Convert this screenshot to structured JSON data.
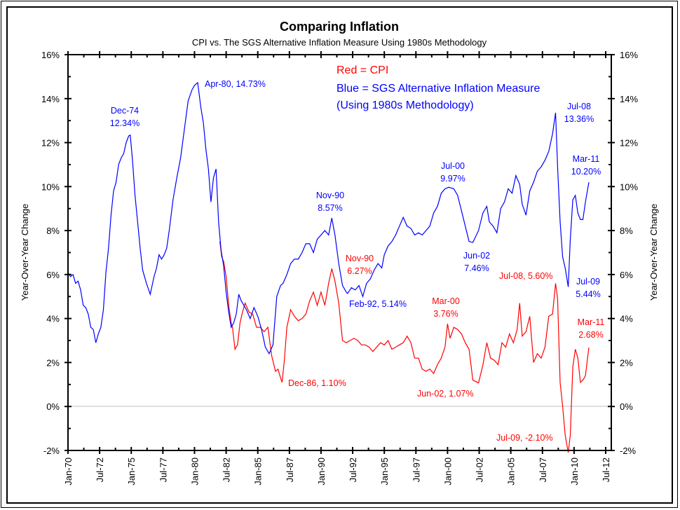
{
  "chart_data": {
    "type": "line",
    "title": "Comparing Inflation",
    "subtitle": "CPI vs. The SGS Alternative Inflation Measure Using 1980s Methodology",
    "ylabel_left": "Year-Over-Year Change",
    "ylabel_right": "Year-Over-Year Change",
    "xlabel": "",
    "ylim": [
      -2,
      16
    ],
    "xlim": [
      1970.0,
      2012.92
    ],
    "yticks": [
      -2,
      0,
      2,
      4,
      6,
      8,
      10,
      12,
      14,
      16
    ],
    "ytick_labels": [
      "-2%",
      "0%",
      "2%",
      "4%",
      "6%",
      "8%",
      "10%",
      "12%",
      "14%",
      "16%"
    ],
    "xticks": [
      1970.0,
      1972.5,
      1975.0,
      1977.5,
      1980.0,
      1982.5,
      1985.0,
      1987.5,
      1990.0,
      1992.5,
      1995.0,
      1997.5,
      2000.0,
      2002.5,
      2005.0,
      2007.5,
      2010.0,
      2012.5
    ],
    "xtick_labels": [
      "Jan-70",
      "Jul-72",
      "Jan-75",
      "Jul-77",
      "Jan-80",
      "Jul-82",
      "Jan-85",
      "Jul-87",
      "Jan-90",
      "Jul-92",
      "Jan-95",
      "Jul-97",
      "Jan-00",
      "Jul-02",
      "Jan-05",
      "Jul-07",
      "Jan-10",
      "Jul-12"
    ],
    "zero_line": true,
    "grid": false,
    "legend": {
      "placement": "top-center",
      "entries": [
        {
          "text": "Red = CPI",
          "color": "#ff0000"
        },
        {
          "text": "Blue = SGS Alternative Inflation Measure",
          "color": "#0000ff"
        },
        {
          "text": "(Using 1980s Methodology)",
          "color": "#0000ff"
        }
      ]
    },
    "series": [
      {
        "name": "SGS Alternative Inflation Measure (1980s Methodology)",
        "color": "#0000ff",
        "x": [
          1970.0,
          1970.2,
          1970.4,
          1970.6,
          1970.8,
          1971.0,
          1971.2,
          1971.4,
          1971.6,
          1971.8,
          1972.0,
          1972.2,
          1972.4,
          1972.6,
          1972.8,
          1973.0,
          1973.2,
          1973.4,
          1973.6,
          1973.8,
          1974.0,
          1974.2,
          1974.4,
          1974.6,
          1974.8,
          1974.92,
          1975.1,
          1975.3,
          1975.5,
          1975.7,
          1975.9,
          1976.2,
          1976.5,
          1976.8,
          1977.0,
          1977.2,
          1977.4,
          1977.6,
          1977.8,
          1978.0,
          1978.3,
          1978.6,
          1978.9,
          1979.2,
          1979.5,
          1979.8,
          1980.0,
          1980.25,
          1980.5,
          1980.7,
          1980.9,
          1981.1,
          1981.3,
          1981.5,
          1981.7,
          1981.9,
          1982.1,
          1982.3,
          1982.5,
          1982.7,
          1982.9,
          1983.1,
          1983.3,
          1983.5,
          1983.7,
          1983.9,
          1984.1,
          1984.4,
          1984.7,
          1985.0,
          1985.3,
          1985.6,
          1985.9,
          1986.2,
          1986.5,
          1986.8,
          1987.0,
          1987.3,
          1987.6,
          1987.9,
          1988.2,
          1988.5,
          1988.8,
          1989.1,
          1989.4,
          1989.7,
          1990.0,
          1990.3,
          1990.6,
          1990.85,
          1991.1,
          1991.4,
          1991.7,
          1992.0,
          1992.1,
          1992.4,
          1992.7,
          1993.0,
          1993.3,
          1993.6,
          1993.9,
          1994.2,
          1994.5,
          1994.8,
          1995.0,
          1995.3,
          1995.6,
          1995.9,
          1996.2,
          1996.5,
          1996.8,
          1997.1,
          1997.4,
          1997.7,
          1998.0,
          1998.3,
          1998.6,
          1998.9,
          1999.2,
          1999.5,
          1999.8,
          2000.1,
          2000.5,
          2000.8,
          2001.1,
          2001.4,
          2001.7,
          2002.0,
          2002.45,
          2002.8,
          2003.1,
          2003.3,
          2003.6,
          2003.9,
          2004.2,
          2004.5,
          2004.8,
          2005.1,
          2005.4,
          2005.7,
          2005.9,
          2006.2,
          2006.5,
          2006.8,
          2007.1,
          2007.4,
          2007.7,
          2008.0,
          2008.3,
          2008.54,
          2008.7,
          2008.9,
          2009.1,
          2009.3,
          2009.54,
          2009.7,
          2009.9,
          2010.1,
          2010.3,
          2010.5,
          2010.7,
          2010.9,
          2011.17
        ],
        "values": [
          6.1,
          5.9,
          6.0,
          5.6,
          5.7,
          5.3,
          4.6,
          4.5,
          4.2,
          3.6,
          3.5,
          2.9,
          3.3,
          3.6,
          4.4,
          6.1,
          7.2,
          8.7,
          9.8,
          10.2,
          11.0,
          11.3,
          11.5,
          12.0,
          12.3,
          12.34,
          11.2,
          9.6,
          8.4,
          7.2,
          6.2,
          5.6,
          5.1,
          5.9,
          6.3,
          6.9,
          6.7,
          6.9,
          7.2,
          8.0,
          9.4,
          10.4,
          11.3,
          12.6,
          13.9,
          14.4,
          14.6,
          14.73,
          13.6,
          12.9,
          11.7,
          10.8,
          9.3,
          10.4,
          10.8,
          8.4,
          7.1,
          6.4,
          5.2,
          4.3,
          3.6,
          3.8,
          4.2,
          5.1,
          4.8,
          4.6,
          4.4,
          4.0,
          4.5,
          4.1,
          3.5,
          2.7,
          2.4,
          2.8,
          5.0,
          5.5,
          5.6,
          6.0,
          6.5,
          6.7,
          6.7,
          7.0,
          7.4,
          7.4,
          7.0,
          7.6,
          7.8,
          8.0,
          7.8,
          8.57,
          7.8,
          6.5,
          5.5,
          5.2,
          5.14,
          5.4,
          5.3,
          5.5,
          5.0,
          5.6,
          5.8,
          6.2,
          6.5,
          6.3,
          6.9,
          7.3,
          7.5,
          7.8,
          8.2,
          8.6,
          8.2,
          8.1,
          7.8,
          7.9,
          7.8,
          8.0,
          8.2,
          8.8,
          9.1,
          9.7,
          9.9,
          9.97,
          9.9,
          9.6,
          8.9,
          8.2,
          7.5,
          7.46,
          8.0,
          8.8,
          9.1,
          8.4,
          8.2,
          7.9,
          9.0,
          9.3,
          9.9,
          9.7,
          10.5,
          10.1,
          9.2,
          8.7,
          9.8,
          10.2,
          10.7,
          10.9,
          11.2,
          11.6,
          12.4,
          13.36,
          10.9,
          8.4,
          6.8,
          6.3,
          5.44,
          7.6,
          9.4,
          9.6,
          8.8,
          8.5,
          8.5,
          9.3,
          10.2
        ]
      },
      {
        "name": "CPI",
        "color": "#ff0000",
        "x": [
          1982.0,
          1982.15,
          1982.3,
          1982.5,
          1982.7,
          1982.9,
          1983.0,
          1983.2,
          1983.4,
          1983.6,
          1983.8,
          1984.0,
          1984.3,
          1984.6,
          1984.9,
          1985.2,
          1985.5,
          1985.8,
          1986.1,
          1986.4,
          1986.6,
          1986.8,
          1986.92,
          1987.1,
          1987.3,
          1987.6,
          1987.9,
          1988.2,
          1988.5,
          1988.8,
          1989.1,
          1989.4,
          1989.7,
          1990.0,
          1990.3,
          1990.6,
          1990.85,
          1991.1,
          1991.4,
          1991.7,
          1992.0,
          1992.3,
          1992.6,
          1992.9,
          1993.2,
          1993.5,
          1993.8,
          1994.1,
          1994.4,
          1994.7,
          1995.0,
          1995.3,
          1995.6,
          1995.9,
          1996.2,
          1996.5,
          1996.8,
          1997.1,
          1997.4,
          1997.7,
          1998.0,
          1998.3,
          1998.6,
          1998.9,
          1999.2,
          1999.5,
          1999.8,
          2000.0,
          2000.2,
          2000.5,
          2000.8,
          2001.1,
          2001.4,
          2001.7,
          2002.0,
          2002.45,
          2002.8,
          2003.1,
          2003.4,
          2003.7,
          2004.0,
          2004.3,
          2004.6,
          2004.9,
          2005.2,
          2005.5,
          2005.7,
          2005.9,
          2006.2,
          2006.5,
          2006.8,
          2007.1,
          2007.4,
          2007.7,
          2008.0,
          2008.3,
          2008.54,
          2008.7,
          2008.9,
          2009.1,
          2009.3,
          2009.54,
          2009.7,
          2009.9,
          2010.1,
          2010.3,
          2010.5,
          2010.7,
          2010.9,
          2011.17
        ],
        "values": [
          7.5,
          6.8,
          6.6,
          5.9,
          4.6,
          3.8,
          3.6,
          2.6,
          2.8,
          3.8,
          4.3,
          4.7,
          4.3,
          4.2,
          3.6,
          3.6,
          3.4,
          3.6,
          2.3,
          1.6,
          1.7,
          1.3,
          1.1,
          2.1,
          3.6,
          4.4,
          4.1,
          3.9,
          4.0,
          4.2,
          4.8,
          5.2,
          4.6,
          5.2,
          4.6,
          5.6,
          6.27,
          5.7,
          4.7,
          3.0,
          2.9,
          3.0,
          3.1,
          3.0,
          2.8,
          2.8,
          2.7,
          2.5,
          2.7,
          2.9,
          2.8,
          3.0,
          2.6,
          2.7,
          2.8,
          2.9,
          3.2,
          2.9,
          2.2,
          2.2,
          1.7,
          1.6,
          1.7,
          1.5,
          1.9,
          2.2,
          2.7,
          3.76,
          3.1,
          3.6,
          3.5,
          3.3,
          2.9,
          2.6,
          1.2,
          1.07,
          1.9,
          2.9,
          2.2,
          2.1,
          1.9,
          2.9,
          2.7,
          3.3,
          2.9,
          3.5,
          4.7,
          3.2,
          3.4,
          4.1,
          2.0,
          2.4,
          2.2,
          2.7,
          4.1,
          4.2,
          5.6,
          4.9,
          1.1,
          0.0,
          -1.3,
          -2.1,
          -1.3,
          1.8,
          2.6,
          2.2,
          1.1,
          1.2,
          1.4,
          2.68
        ]
      }
    ],
    "annotations": [
      {
        "id": "sgs-dec74",
        "lines": [
          "Dec-74",
          "12.34%"
        ],
        "color": "#0000ff"
      },
      {
        "id": "sgs-apr80",
        "lines": [
          "Apr-80, 14.73%"
        ],
        "color": "#0000ff"
      },
      {
        "id": "sgs-nov90",
        "lines": [
          "Nov-90",
          "8.57%"
        ],
        "color": "#0000ff"
      },
      {
        "id": "sgs-feb92",
        "lines": [
          "Feb-92, 5.14%"
        ],
        "color": "#0000ff"
      },
      {
        "id": "sgs-jul00",
        "lines": [
          "Jul-00",
          "9.97%"
        ],
        "color": "#0000ff"
      },
      {
        "id": "sgs-jun02",
        "lines": [
          "Jun-02",
          "7.46%"
        ],
        "color": "#0000ff"
      },
      {
        "id": "sgs-jul08",
        "lines": [
          "Jul-08",
          "13.36%"
        ],
        "color": "#0000ff"
      },
      {
        "id": "sgs-mar11",
        "lines": [
          "Mar-11",
          "10.20%"
        ],
        "color": "#0000ff"
      },
      {
        "id": "sgs-jul09",
        "lines": [
          "Jul-09",
          "5.44%"
        ],
        "color": "#0000ff"
      },
      {
        "id": "cpi-nov90",
        "lines": [
          "Nov-90",
          "6.27%"
        ],
        "color": "#ff0000"
      },
      {
        "id": "cpi-dec86",
        "lines": [
          "Dec-86, 1.10%"
        ],
        "color": "#ff0000"
      },
      {
        "id": "cpi-mar00",
        "lines": [
          "Mar-00",
          "3.76%"
        ],
        "color": "#ff0000"
      },
      {
        "id": "cpi-jun02",
        "lines": [
          "Jun-02, 1.07%"
        ],
        "color": "#ff0000"
      },
      {
        "id": "cpi-jul08",
        "lines": [
          "Jul-08, 5.60%"
        ],
        "color": "#ff0000"
      },
      {
        "id": "cpi-mar11",
        "lines": [
          "Mar-11",
          "2.68%"
        ],
        "color": "#ff0000"
      },
      {
        "id": "cpi-jul09",
        "lines": [
          "Jul-09, -2.10%"
        ],
        "color": "#ff0000"
      }
    ]
  }
}
